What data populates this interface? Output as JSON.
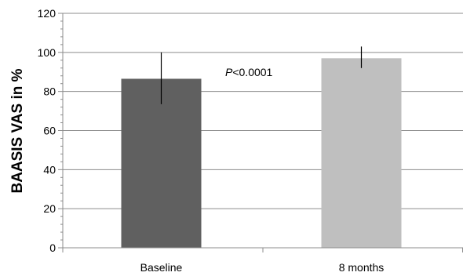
{
  "chart_data": {
    "type": "bar",
    "categories": [
      "Baseline",
      "8 months"
    ],
    "values": [
      86.5,
      97
    ],
    "error_bars": [
      {
        "low": 73.5,
        "high": 100
      },
      {
        "low": 92,
        "high": 103
      }
    ],
    "bar_colors": [
      "#606060",
      "#bfbfbf"
    ],
    "ylabel": "BAASIS VAS in %",
    "xlabel": "",
    "title": "",
    "ylim": [
      0,
      120
    ],
    "yticks": [
      0,
      20,
      40,
      60,
      80,
      100,
      120
    ],
    "grid": true,
    "legend": "none",
    "annotation": {
      "italic_part": "P",
      "rest": "<0.0001"
    }
  }
}
